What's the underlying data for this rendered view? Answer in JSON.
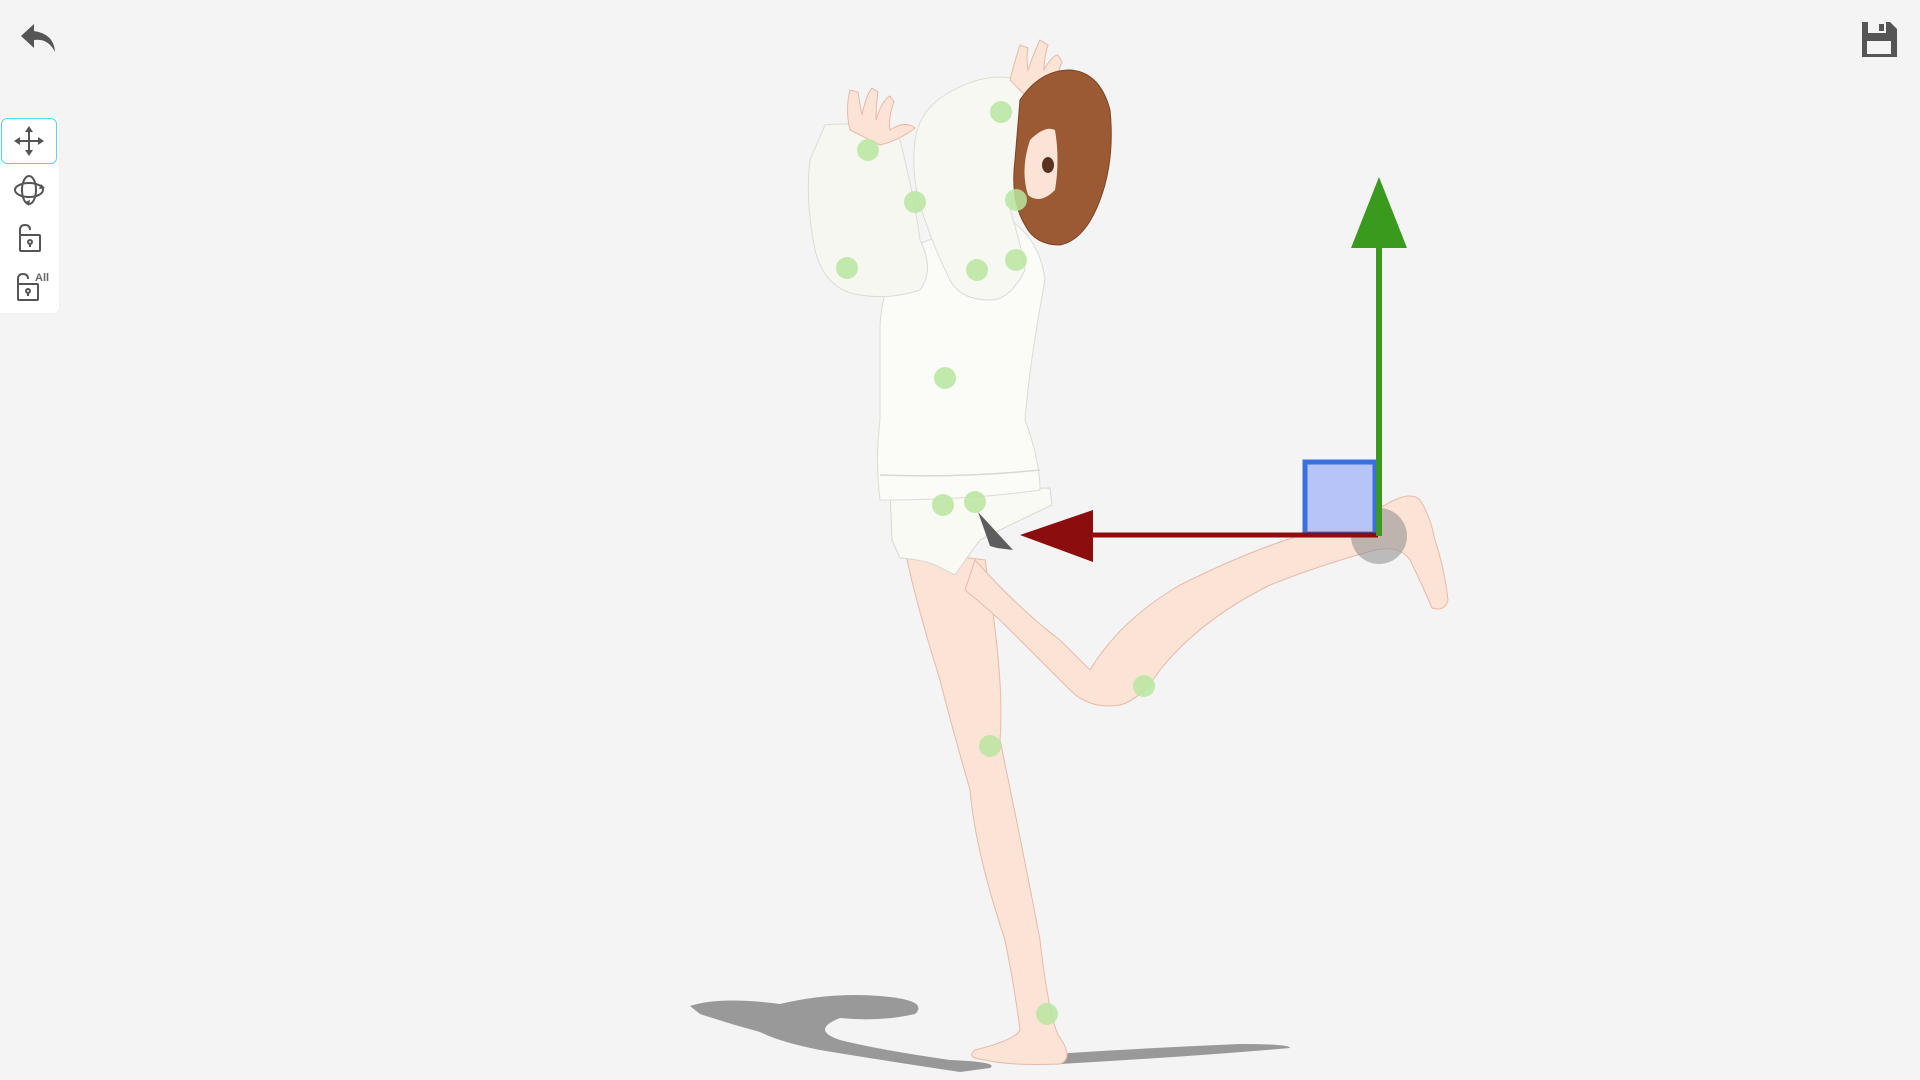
{
  "app": {
    "view": "pose-editor-3d"
  },
  "top_bar": {
    "undo_icon": "undo-arrow-icon",
    "save_icon": "floppy-save-icon"
  },
  "toolbar": {
    "tools": [
      {
        "icon": "move-arrows-icon",
        "active": true
      },
      {
        "icon": "rotate-orbit-icon",
        "active": false
      },
      {
        "icon": "unlock-icon",
        "active": false
      },
      {
        "icon": "unlock-all-icon",
        "label": "All",
        "active": false
      }
    ]
  },
  "gizmo": {
    "type": "translate",
    "x_axis_color": "#8b0d0d",
    "y_axis_color": "#3a9a1e",
    "plane_color": "#3b6fe0"
  },
  "joint_color": "#b9e6a0",
  "background": "#f4f4f4"
}
